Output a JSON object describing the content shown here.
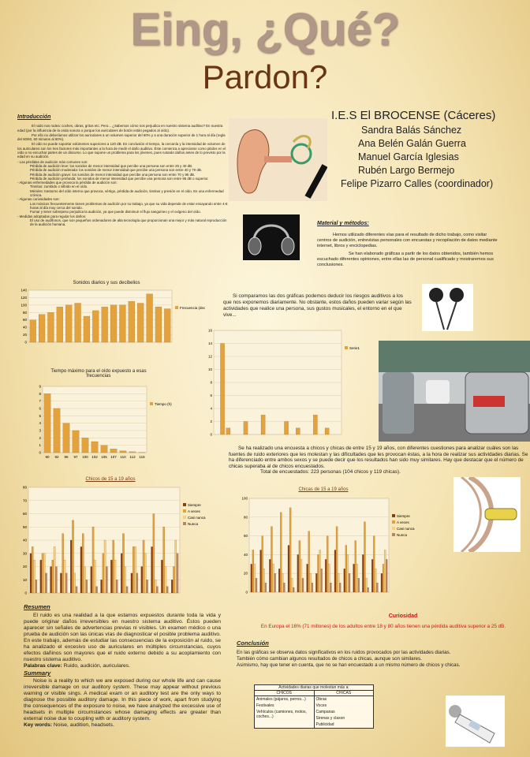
{
  "header": {
    "title": "Eing, ¿Qué?",
    "subtitle": "Pardon?"
  },
  "authors": {
    "school": "I.E.S El BROCENSE (Cáceres)",
    "names": [
      "Sandra Balás Sánchez",
      "Ana Belén Galán Guerra",
      "Manuel García Iglesias",
      "Rubén Largo Bermejo",
      "Felipe Pizarro Calles (coordinador)"
    ]
  },
  "intro": {
    "heading": "Introducción",
    "paragraphs": [
      "El ruido nos rodea: coches, obras, gritos etc. Pero... ¿Sabemos cómo nos perjudica en nuestro sistema auditivo? En nuestra edad (por la influencia de la onda sonora o porque los auriculares de botón están pegados al oído).",
      "Por ello no deberíamos utilizar los auriculares a un volumen superior del 60% y a una duración superior de 1 hora al día (regla del 60/60, 60 minutos al 60%).",
      "El oído no puede soportar volúmenes superiores a 120 dB. En conclusión el tiempo, la cercanía y la intensidad de volumen de los auriculares son los tres factores más importantes a la hora de medir el daño auditivo. Éste comienza a apreciarse como pitidos en el oído o no escuchar partes de un discurso. Lo que supone un problema para los jóvenes, pues notarán daños antes de lo previsto por la edad en su audición."
    ],
    "lists": [
      {
        "heading": "- Las pérdidas de audición más comunes son:",
        "items": [
          "Pérdida de audición leve: los sonidos de menor intensidad que percibe una persona son entre 25 y 40 dB.",
          "Pérdida de audición moderada: los sonidos de menor intensidad que percibe una persona son entre 40 y 70 dB.",
          "Pérdida de audición grave: los sonidos de menor intensidad que percibe una persona son entre 70 y 95 dB.",
          "Pérdida de audición profunda: los sonidos de menor intensidad que percibe una persona son entre 95 dB o superior."
        ]
      },
      {
        "heading": "- Algunas enfermedades que provoca la pérdida de audición son:",
        "items": [
          "Tinnitus: zumbido o silbido en el oído.",
          "Ménière: trastorno del oído interno que provoca, vértigo, pérdida de audición, tinnitus y presión en el oído. Es una enfermedad crónica."
        ]
      },
      {
        "heading": "- Algunas curiosidades son:",
        "items": [
          "Los músicos frecuentemente tienen problemas de audición por su trabajo, ya que su vida depende de estar ensayando entre 4-8 horas al día muy cerca del sonido.",
          "Fumar y tener sobrepeso perjudica la audición, ya que puede disminuir el flujo sanguíneo y el oxígeno del oído."
        ]
      },
      {
        "heading": "- Medidas adoptadas para regular los daños:",
        "items": [
          "El uso de audífonos, que son pequeños ordenadores de alta tecnología que proporcionan una mejor y más natural reproducción de la audición humana."
        ]
      }
    ]
  },
  "methods": {
    "heading": "Material y métodos:",
    "paragraphs": [
      "Hemos utilizado diferentes vías para el resultado de dicho trabajo, como visitar centros de audición, entrevistas personales con encuestas y recopilación de datos mediante internet, libros y enciclopedias.",
      "Se han elaborado gráficas a partir de los datos obtenidos, también hemos escuchado diferentes opiniones, entre ellas las de personal cualificado y mostraremos sus conclusiones."
    ]
  },
  "comparison": "Si comparamos las dos gráficas podemos deducir los riesgos auditivos a los que nos exponemos diariamente. No obstante, estos daños pueden variar según las actividades que realice una persona, sus gustos musicales, el entorno en el que vive...",
  "survey": {
    "text": "Se ha realizado una encuesta a chicos y chicas de entre 15 y 19 años, con diferentes cuestiones para analizar cuáles son las fuentes de ruido exteriores que les molestan y las dificultades que les provocan éstas, a la hora de realizar sus actividades diarias. Se ha diferenciado entre ambos sexos y se puede decir que los resultados han sido muy similares. Hay que destacar que el número de chicas superaba al de chicos encuestados.",
    "total": "Total de encuestados:  223 personas (104 chicos y 119 chicas)."
  },
  "chart_data": [
    {
      "type": "bar",
      "title": "Sonidos diarios y sus decibelios",
      "categories": [
        null,
        null,
        null,
        null,
        null,
        null,
        null,
        null,
        null,
        null,
        null,
        null,
        null,
        null,
        null,
        null
      ],
      "series": [
        {
          "name": "Frecuencia (decibelios)",
          "color": "#e3a23b",
          "values": [
            60,
            75,
            80,
            95,
            100,
            105,
            70,
            85,
            95,
            100,
            100,
            110,
            105,
            130,
            95,
            90
          ]
        }
      ],
      "ylim": [
        0,
        140
      ],
      "yticks": [
        0,
        20,
        40,
        60,
        80,
        100,
        120,
        140
      ],
      "grid": true
    },
    {
      "type": "bar",
      "title": "Tiempo máximo para el oído expuesto a esas frecuencias",
      "categories": [
        "90",
        "92",
        "95",
        "97",
        "100",
        "102",
        "105",
        "107",
        "110",
        "112",
        "115"
      ],
      "series": [
        {
          "name": "Tiempo (h)",
          "color": "#e3a23b",
          "values": [
            8,
            6,
            4,
            3,
            2,
            1.5,
            1,
            0.5,
            0.25,
            0.12,
            0.03
          ]
        }
      ],
      "ylim": [
        0,
        9
      ],
      "yticks": [
        0,
        1,
        2,
        3,
        4,
        5,
        6,
        7,
        8,
        9
      ],
      "grid": true
    },
    {
      "type": "bar",
      "categories": [
        null,
        null,
        null,
        null,
        null,
        null,
        null,
        null,
        null,
        null,
        null,
        null,
        null,
        null,
        null,
        null,
        null,
        null,
        null,
        null,
        null,
        null
      ],
      "series": [
        {
          "name": "Serie1",
          "color": "#e3a23b",
          "values": [
            0,
            14,
            1,
            0,
            0,
            2,
            0,
            0,
            3,
            0,
            0,
            0,
            2,
            0,
            1,
            0,
            0,
            3,
            0,
            1,
            0,
            0
          ]
        }
      ],
      "ylim": [
        0,
        16
      ],
      "yticks": [
        0,
        2,
        4,
        6,
        8,
        10,
        12,
        14,
        16
      ],
      "grid": true
    },
    {
      "type": "bar",
      "title": "Chicos de 15 a 19 años",
      "categories": [
        null,
        null,
        null,
        null,
        null,
        null,
        null,
        null,
        null,
        null,
        null,
        null,
        null,
        null,
        null
      ],
      "series": [
        {
          "name": "Siempre",
          "color": "#8a3f12",
          "values": [
            30,
            25,
            20,
            15,
            40,
            35,
            20,
            10,
            25,
            30,
            15,
            20,
            35,
            25,
            10
          ]
        },
        {
          "name": "A veces",
          "color": "#e3a23b",
          "values": [
            35,
            30,
            25,
            45,
            55,
            45,
            50,
            30,
            40,
            45,
            35,
            40,
            60,
            50,
            20
          ]
        },
        {
          "name": "Casi nunca",
          "color": "#f4cf86",
          "values": [
            25,
            30,
            35,
            25,
            15,
            20,
            25,
            40,
            25,
            20,
            35,
            30,
            10,
            20,
            40
          ]
        },
        {
          "name": "Nunca",
          "color": "#b9856a",
          "values": [
            10,
            15,
            20,
            15,
            5,
            10,
            5,
            20,
            10,
            5,
            15,
            10,
            5,
            5,
            30
          ]
        }
      ],
      "ylim": [
        0,
        80
      ],
      "yticks": [
        0,
        10,
        20,
        30,
        40,
        50,
        60,
        70,
        80
      ],
      "grid": true
    },
    {
      "type": "bar",
      "title": "Chicas de 15 a 19 años",
      "categories": [
        null,
        null,
        null,
        null,
        null,
        null,
        null,
        null,
        null,
        null,
        null,
        null,
        null,
        null,
        null
      ],
      "series": [
        {
          "name": "Siempre",
          "color": "#8a3f12",
          "values": [
            30,
            45,
            35,
            25,
            50,
            40,
            30,
            20,
            35,
            45,
            25,
            30,
            40,
            35,
            20
          ]
        },
        {
          "name": "A veces",
          "color": "#e3a23b",
          "values": [
            45,
            60,
            70,
            85,
            90,
            55,
            65,
            40,
            60,
            70,
            50,
            55,
            75,
            60,
            30
          ]
        },
        {
          "name": "Casi nunca",
          "color": "#f4cf86",
          "values": [
            30,
            25,
            30,
            20,
            15,
            35,
            20,
            45,
            30,
            20,
            40,
            30,
            15,
            25,
            45
          ]
        },
        {
          "name": "Nunca",
          "color": "#b9856a",
          "values": [
            15,
            10,
            20,
            10,
            5,
            15,
            10,
            25,
            10,
            10,
            20,
            15,
            5,
            10,
            35
          ]
        }
      ],
      "ylim": [
        0,
        100
      ],
      "yticks": [
        0,
        20,
        40,
        60,
        80,
        100
      ],
      "grid": true
    }
  ],
  "summary_es": {
    "heading": "Resumen",
    "text": "El ruido es una realidad a la que estamos expuestos durante toda la vida y puede originar daños irreversibles en nuestro sistema auditivo. Éstos pueden aparecer sin señales de advertencias previas ni visibles. Un examen médico o una prueba de audición son las únicas vías de diagnosticar el posible problema auditivo. En este trabajo, además de estudiar las consecuencias de la exposición al ruido, se ha analizado el excesivo uso de auriculares en múltiples circunstancias, cuyos efectos dañinos son mayores que el ruido externo debido a su acoplamiento con nuestro sistema auditivo.",
    "keywords_label": "Palabras clave:",
    "keywords": "Ruido, audición, auriculares."
  },
  "summary_en": {
    "heading": "Summary",
    "text": "Noise is a reality to which we are exposed during our whole life and can cause irreversible damage on our auditory system. These may appear without previous warning or visible sings. A medical  exam or an auditory test are the only ways to diagnose the possible auditory damage. In this piece of work, apart from studying the consequences of the exposure to noise, we have analyzed the excessive use of headsets in multiple circumstances whose damaging effects are greater than external noise due to coupling with or auditory system.",
    "keywords_label": "Key words:",
    "keywords": "Noise, audition, headsets."
  },
  "curiosity": {
    "heading": "Curiosidad",
    "text": "En Europa el 16% (71 millones) de los adultos entre 18 y 80 años tienen una pérdida auditiva superior a 25 dB."
  },
  "conclusion": {
    "heading": "Conclusión",
    "lines": [
      "En las gráficas se observa datos significativos en los ruidos provocados por las actividades diarias.",
      "También cómo cambian algunos resultados de chicos a chicas, aunque son similares.",
      "Asimismo, hay que tener en cuenta, que no se han encuestado a un mismo número de chicos y chicas."
    ]
  },
  "table": {
    "caption": "Actividades diarias que molestan más a:",
    "columns": [
      {
        "header": "CHICOS",
        "items": [
          "Animales (pájaros, perros...)",
          "Festivales",
          "Vehículos (camiones, motos, coches...)"
        ]
      },
      {
        "header": "CHICAS",
        "items": [
          "Obras",
          "Voces",
          "Campanas",
          "Sirenas y claxon",
          "Publicidad"
        ]
      }
    ]
  }
}
